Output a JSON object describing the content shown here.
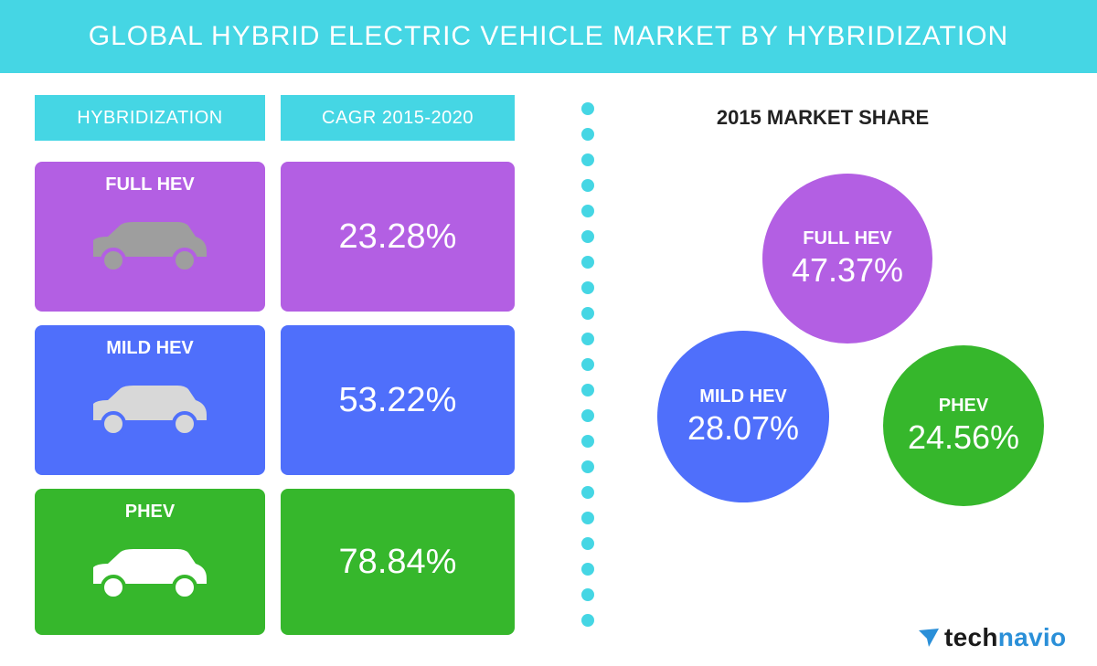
{
  "title": "GLOBAL HYBRID ELECTRIC VEHICLE MARKET BY HYBRIDIZATION",
  "table": {
    "headers": [
      "HYBRIDIZATION",
      "CAGR 2015-2020"
    ],
    "rows": [
      {
        "label": "FULL HEV",
        "cagr": "23.28%",
        "color": "#b35fe3",
        "car_color": "#9e9e9e"
      },
      {
        "label": "MILD HEV",
        "cagr": "53.22%",
        "color": "#4f6ffb",
        "car_color": "#d8d8d8"
      },
      {
        "label": "PHEV",
        "cagr": "78.84%",
        "color": "#36b72c",
        "car_color": "#ffffff"
      }
    ]
  },
  "share": {
    "title": "2015 MARKET SHARE",
    "bubbles": [
      {
        "label": "FULL HEV",
        "value_text": "47.37%",
        "color": "#b35fe3"
      },
      {
        "label": "MILD HEV",
        "value_text": "28.07%",
        "color": "#4f6ffb"
      },
      {
        "label": "PHEV",
        "value_text": "24.56%",
        "color": "#36b72c"
      }
    ]
  },
  "chart_data": {
    "type": "table",
    "title": "GLOBAL HYBRID ELECTRIC VEHICLE MARKET BY HYBRIDIZATION",
    "columns": [
      "HYBRIDIZATION",
      "CAGR 2015-2020"
    ],
    "categories": [
      "FULL HEV",
      "MILD HEV",
      "PHEV"
    ],
    "series": [
      {
        "name": "CAGR 2015-2020",
        "values": [
          23.28,
          53.22,
          78.84
        ]
      },
      {
        "name": "2015 MARKET SHARE",
        "values": [
          47.37,
          28.07,
          24.56
        ]
      }
    ],
    "units": "%"
  },
  "brand": {
    "name_part1": "tech",
    "name_part2": "navio",
    "accent": "#2a8fd8"
  },
  "colors": {
    "banner": "#45d6e4"
  }
}
